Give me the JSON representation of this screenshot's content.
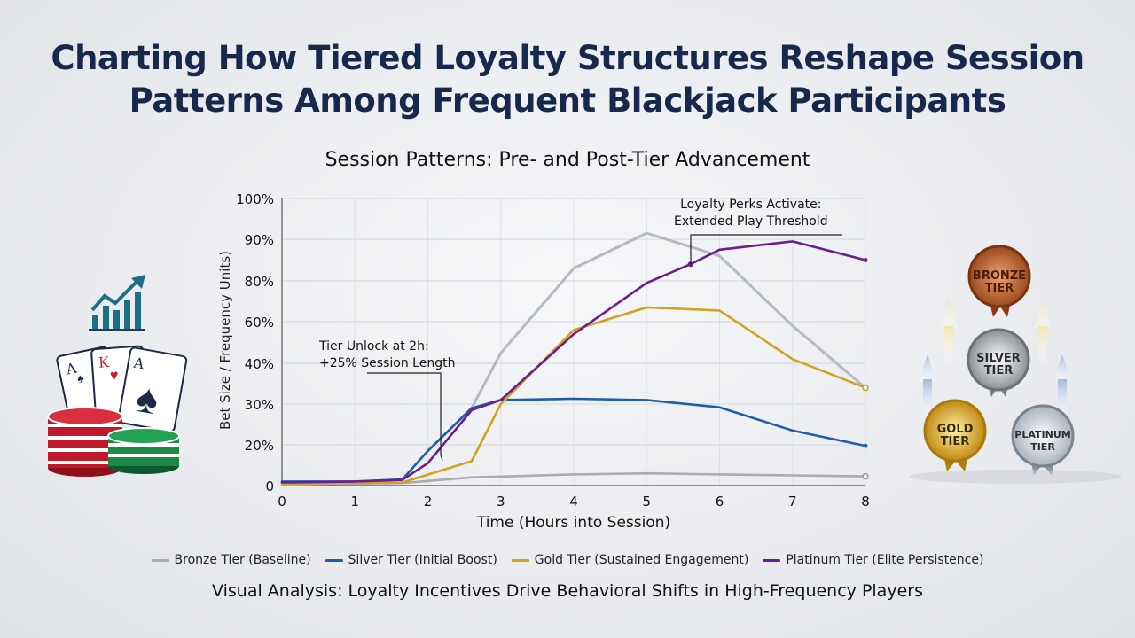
{
  "header": {
    "title_line1": "Charting How Tiered Loyalty Structures Reshape Session",
    "title_line2": "Patterns Among Frequent Blackjack Participants"
  },
  "footer": {
    "caption": "Visual Analysis: Loyalty Incentives Drive Behavioral Shifts in High-Frequency Players"
  },
  "medals": {
    "bronze": "BRONZE TIER",
    "silver": "SILVER TIER",
    "gold": "GOLD TIER",
    "platinum": "PLATINUM TIER"
  },
  "cards": [
    "A",
    "K",
    "A"
  ],
  "chart_data": {
    "type": "line",
    "title": "Session Patterns: Pre- and Post-Tier Advancement",
    "xlabel": "Time (Hours into Session)",
    "ylabel": "Bet Size / Frequency Units)",
    "xlim": [
      0,
      8
    ],
    "x_ticks": [
      "0",
      "1",
      "2",
      "3",
      "4",
      "5",
      "6",
      "7",
      "8"
    ],
    "y_ticks": [
      {
        "label": "0",
        "value": 0
      },
      {
        "label": "20%",
        "value": 20
      },
      {
        "label": "30%",
        "value": 30
      },
      {
        "label": "40%",
        "value": 40
      },
      {
        "label": "60%",
        "value": 60
      },
      {
        "label": "80%",
        "value": 80
      },
      {
        "label": "90%",
        "value": 90
      },
      {
        "label": "100%",
        "value": 100
      }
    ],
    "grid": true,
    "legend_position": "bottom",
    "series": [
      {
        "name": "Bronze Tier (Baseline)",
        "color": "#a9abad",
        "x": [
          0,
          1.65,
          2.6,
          4,
          5,
          6,
          7,
          8
        ],
        "y": [
          0.5,
          1.2,
          4,
          5.5,
          6,
          5.5,
          5,
          4.5
        ]
      },
      {
        "name": "Silver Tier (Initial Boost)",
        "color": "#1f5bb0",
        "x": [
          0,
          1,
          1.65,
          2,
          2.6,
          3,
          4,
          5,
          6,
          7,
          8
        ],
        "y": [
          2,
          2,
          3,
          17,
          29,
          31,
          31.3,
          31,
          29.2,
          23.5,
          19.5
        ]
      },
      {
        "name": "Gold Tier (Sustained Engagement)",
        "color": "#d1a31d",
        "x": [
          0,
          1.65,
          2.6,
          3,
          4,
          5,
          6,
          7,
          8
        ],
        "y": [
          1,
          1.5,
          12,
          30,
          56,
          67,
          65.5,
          42,
          34
        ]
      },
      {
        "name": "Platinum Tier (Elite Persistence)",
        "color": "#6c1d8f",
        "x": [
          0,
          1,
          1.65,
          2,
          2.6,
          3,
          4,
          5,
          5.6,
          6,
          7,
          8
        ],
        "y": [
          1.5,
          2,
          2.8,
          11,
          28.5,
          31,
          54,
          79,
          84,
          87.5,
          89.5,
          85
        ]
      }
    ],
    "grey_peak_line": {
      "color": "#b7babd",
      "x": [
        2,
        2.6,
        3,
        4,
        5,
        6,
        7,
        8
      ],
      "y": [
        17,
        29,
        45,
        83,
        91.5,
        86,
        58,
        34
      ]
    },
    "annotations": [
      {
        "text_line1": "Tier Unlock at 2h:",
        "text_line2": "+25% Session Length",
        "target_x": 2.2,
        "target_y": 15
      },
      {
        "text_line1": "Loyalty Perks Activate:",
        "text_line2": "Extended Play Threshold",
        "target_x": 5.6,
        "target_y": 84
      }
    ]
  }
}
